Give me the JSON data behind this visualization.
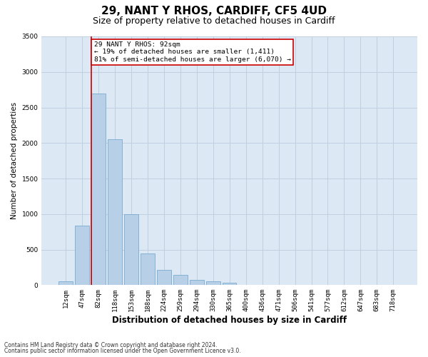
{
  "title1": "29, NANT Y RHOS, CARDIFF, CF5 4UD",
  "title2": "Size of property relative to detached houses in Cardiff",
  "xlabel": "Distribution of detached houses by size in Cardiff",
  "ylabel": "Number of detached properties",
  "categories": [
    "12sqm",
    "47sqm",
    "82sqm",
    "118sqm",
    "153sqm",
    "188sqm",
    "224sqm",
    "259sqm",
    "294sqm",
    "330sqm",
    "365sqm",
    "400sqm",
    "436sqm",
    "471sqm",
    "506sqm",
    "541sqm",
    "577sqm",
    "612sqm",
    "647sqm",
    "683sqm",
    "718sqm"
  ],
  "values": [
    55,
    840,
    2700,
    2050,
    1000,
    450,
    210,
    140,
    70,
    55,
    30,
    5,
    5,
    5,
    5,
    0,
    0,
    0,
    0,
    0,
    0
  ],
  "bar_color": "#b8cfe8",
  "bar_edge_color": "#7aaad0",
  "vline_color": "#cc0000",
  "vline_x_index": 2,
  "annotation_text": "29 NANT Y RHOS: 92sqm\n← 19% of detached houses are smaller (1,411)\n81% of semi-detached houses are larger (6,070) →",
  "annotation_box_color": "#ffffff",
  "annotation_box_edgecolor": "#cc0000",
  "ylim": [
    0,
    3500
  ],
  "yticks": [
    0,
    500,
    1000,
    1500,
    2000,
    2500,
    3000,
    3500
  ],
  "grid_color": "#c0d0e0",
  "bg_color": "#dce8f4",
  "footnote1": "Contains HM Land Registry data © Crown copyright and database right 2024.",
  "footnote2": "Contains public sector information licensed under the Open Government Licence v3.0.",
  "title1_fontsize": 11,
  "title2_fontsize": 9,
  "xlabel_fontsize": 8.5,
  "ylabel_fontsize": 7.5,
  "tick_fontsize": 6.5,
  "annotation_fontsize": 6.8,
  "footnote_fontsize": 5.5
}
